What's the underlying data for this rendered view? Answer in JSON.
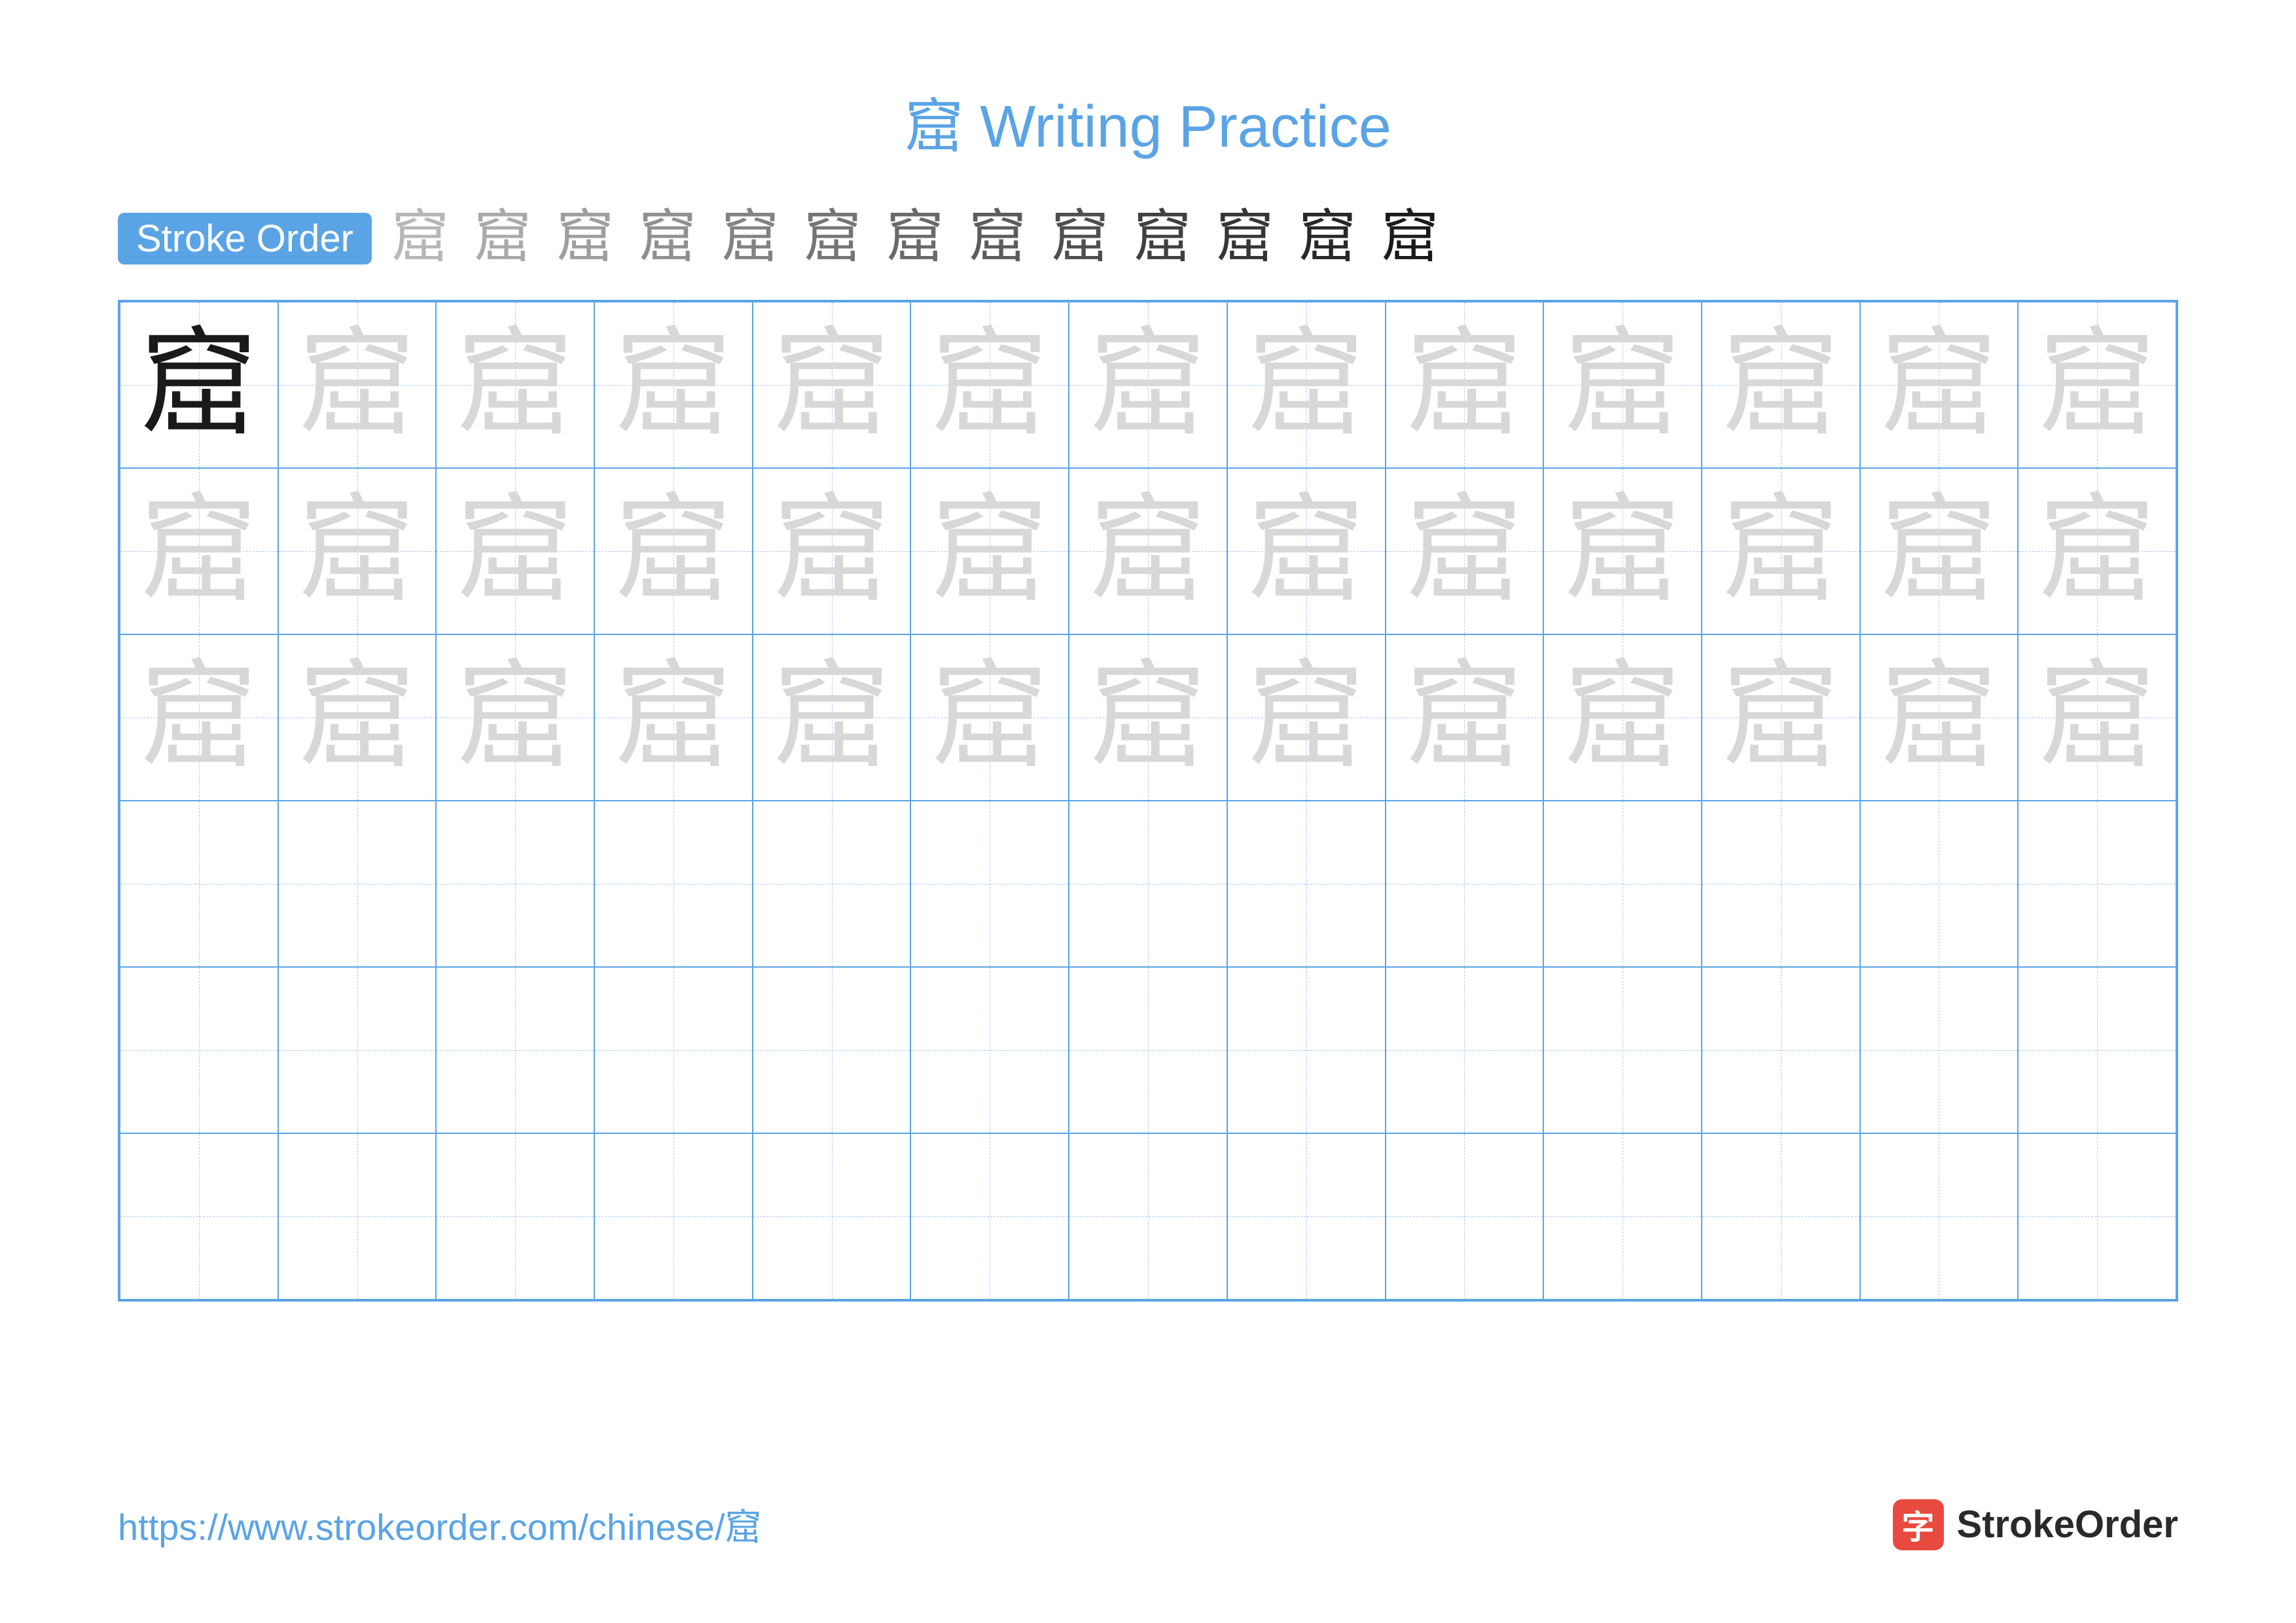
{
  "title": "窟 Writing Practice",
  "title_color": "#5aa4e6",
  "stroke_label": "Stroke Order",
  "stroke_label_bg": "#5aa4e6",
  "character": "窟",
  "stroke_count": 13,
  "grid": {
    "cols": 13,
    "rows": 6,
    "border_color": "#5aa4e6",
    "guide_color": "#a8cef0",
    "trace_rows": 3,
    "model_color": "#1a1a1a",
    "trace_color": "#d8d8d8"
  },
  "footer": {
    "url": "https://www.strokeorder.com/chinese/窟",
    "url_color": "#5aa4e6",
    "brand_icon_bg": "#e84a3f",
    "brand_icon_char": "字",
    "brand_text": "StrokeOrder",
    "brand_text_color": "#2a2a2a"
  }
}
